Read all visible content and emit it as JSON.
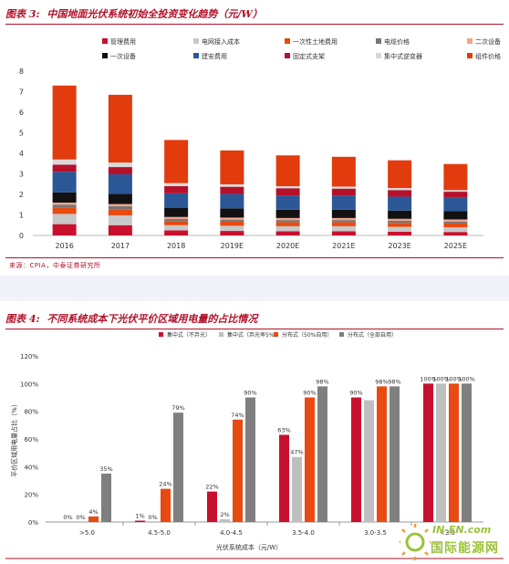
{
  "figure1": {
    "number": "图表 3:",
    "title": "中国地面光伏系统初始全投资变化趋势（元/W）",
    "source": "来源：CPIA，中泰证券研究所"
  },
  "figure2": {
    "number": "图表 4:",
    "title": "不同系统成本下光伏平价区域用电量的占比情况"
  },
  "watermark": {
    "top": "IN-EN.com",
    "bottom": "国际能源网"
  },
  "chart_data": [
    {
      "type": "bar",
      "stacked": true,
      "categories": [
        "2016",
        "2017",
        "2018",
        "2019E",
        "2020E",
        "2021E",
        "2023E",
        "2025E"
      ],
      "ylim": [
        0,
        8
      ],
      "yticks": [
        0,
        1,
        2,
        3,
        4,
        5,
        6,
        7,
        8
      ],
      "grid": false,
      "legend_position": "top",
      "series": [
        {
          "name": "管理费用",
          "color": "#c8102e",
          "values": [
            0.55,
            0.5,
            0.25,
            0.22,
            0.2,
            0.2,
            0.18,
            0.17
          ]
        },
        {
          "name": "电网接入成本",
          "color": "#c8c8c8",
          "values": [
            0.5,
            0.48,
            0.25,
            0.25,
            0.25,
            0.25,
            0.24,
            0.23
          ]
        },
        {
          "name": "一次性土地费用",
          "color": "#e84a10",
          "values": [
            0.3,
            0.3,
            0.2,
            0.2,
            0.2,
            0.2,
            0.19,
            0.18
          ]
        },
        {
          "name": "电缆价格",
          "color": "#767676",
          "values": [
            0.15,
            0.15,
            0.1,
            0.1,
            0.1,
            0.1,
            0.1,
            0.1
          ]
        },
        {
          "name": "二次设备",
          "color": "#f2a48a",
          "values": [
            0.1,
            0.1,
            0.1,
            0.1,
            0.1,
            0.1,
            0.1,
            0.1
          ]
        },
        {
          "name": "一次设备",
          "color": "#111111",
          "values": [
            0.5,
            0.5,
            0.45,
            0.45,
            0.4,
            0.4,
            0.4,
            0.4
          ]
        },
        {
          "name": "建安费用",
          "color": "#2b5797",
          "values": [
            1.0,
            0.95,
            0.7,
            0.7,
            0.7,
            0.7,
            0.68,
            0.65
          ]
        },
        {
          "name": "固定式支架",
          "color": "#b5112b",
          "values": [
            0.35,
            0.35,
            0.35,
            0.35,
            0.35,
            0.33,
            0.32,
            0.3
          ]
        },
        {
          "name": "集中式逆变器",
          "color": "#d9d9d9",
          "values": [
            0.25,
            0.22,
            0.15,
            0.12,
            0.1,
            0.1,
            0.1,
            0.08
          ]
        },
        {
          "name": "组件价格",
          "color": "#e23b0d",
          "values": [
            3.6,
            3.3,
            2.1,
            1.65,
            1.5,
            1.45,
            1.35,
            1.27
          ]
        }
      ]
    },
    {
      "type": "bar",
      "categories": [
        ">5.0",
        "4.5-5.0",
        "4.0-4.5",
        "3.5-4.0",
        "3.0-3.5",
        "<3.0"
      ],
      "xlabel": "光伏系统成本（元/W）",
      "ylabel": "平价区域用电量占比（%）",
      "ylim": [
        0,
        120
      ],
      "yticks": [
        0,
        20,
        40,
        60,
        80,
        100,
        120
      ],
      "tick_suffix": "%",
      "grid": false,
      "legend_position": "top",
      "series": [
        {
          "name": "集中式（不弃光）",
          "color": "#c8102e",
          "values": [
            0,
            1,
            22,
            63,
            90,
            100
          ]
        },
        {
          "name": "集中式（弃光率5%）",
          "color": "#bfbfbf",
          "values": [
            0,
            0,
            2,
            47,
            88,
            100
          ]
        },
        {
          "name": "分布式（50%自用）",
          "color": "#e84a10",
          "values": [
            4,
            24,
            74,
            90,
            98,
            100
          ]
        },
        {
          "name": "分布式（全部自用）",
          "color": "#7f7f7f",
          "values": [
            35,
            79,
            90,
            98,
            98,
            100
          ]
        }
      ],
      "data_labels": [
        [
          "0%",
          "1%",
          "22%",
          "63%",
          "90%",
          "100%"
        ],
        [
          "0%",
          "0%",
          "2%",
          "47%",
          "",
          "100%"
        ],
        [
          "4%",
          "24%",
          "74%",
          "90%",
          "98%",
          "100%"
        ],
        [
          "35%",
          "79%",
          "90%",
          "98%",
          "98%",
          "100%"
        ]
      ]
    }
  ]
}
